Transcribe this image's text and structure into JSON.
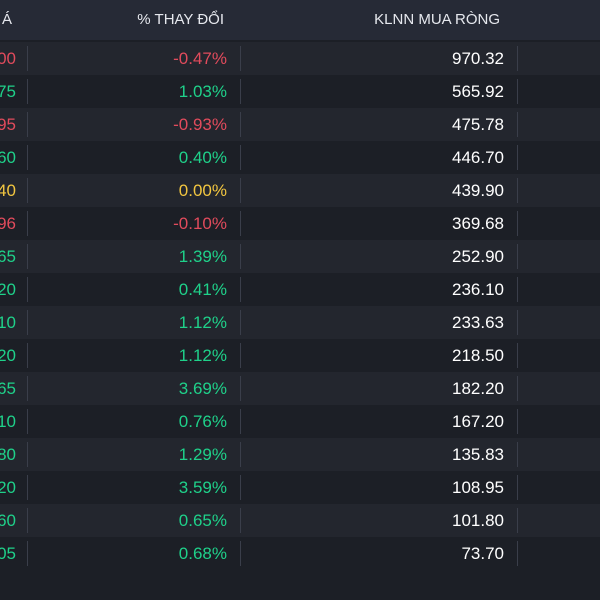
{
  "table": {
    "headers": {
      "price": "Á",
      "change": "% THAY ĐỔI",
      "net_buy": "KLNN MUA RÒNG"
    },
    "rows": [
      {
        "price": "00",
        "change": "-0.47%",
        "net_buy": "970.32",
        "trend": "down"
      },
      {
        "price": "75",
        "change": "1.03%",
        "net_buy": "565.92",
        "trend": "up"
      },
      {
        "price": "95",
        "change": "-0.93%",
        "net_buy": "475.78",
        "trend": "down"
      },
      {
        "price": "60",
        "change": "0.40%",
        "net_buy": "446.70",
        "trend": "up"
      },
      {
        "price": "40",
        "change": "0.00%",
        "net_buy": "439.90",
        "trend": "flat"
      },
      {
        "price": "96",
        "change": "-0.10%",
        "net_buy": "369.68",
        "trend": "down"
      },
      {
        "price": "65",
        "change": "1.39%",
        "net_buy": "252.90",
        "trend": "up"
      },
      {
        "price": "20",
        "change": "0.41%",
        "net_buy": "236.10",
        "trend": "up"
      },
      {
        "price": "10",
        "change": "1.12%",
        "net_buy": "233.63",
        "trend": "up"
      },
      {
        "price": "20",
        "change": "1.12%",
        "net_buy": "218.50",
        "trend": "up"
      },
      {
        "price": "65",
        "change": "3.69%",
        "net_buy": "182.20",
        "trend": "up"
      },
      {
        "price": "10",
        "change": "0.76%",
        "net_buy": "167.20",
        "trend": "up"
      },
      {
        "price": "80",
        "change": "1.29%",
        "net_buy": "135.83",
        "trend": "up"
      },
      {
        "price": "20",
        "change": "3.59%",
        "net_buy": "108.95",
        "trend": "up"
      },
      {
        "price": "60",
        "change": "0.65%",
        "net_buy": "101.80",
        "trend": "up"
      },
      {
        "price": "05",
        "change": "0.68%",
        "net_buy": "73.70",
        "trend": "up"
      }
    ]
  },
  "colors": {
    "up": "#1fd18a",
    "down": "#e14b5c",
    "flat": "#f2c640",
    "background": "#1c1f26",
    "row_alt": "#23262e",
    "header": "#262a36"
  }
}
